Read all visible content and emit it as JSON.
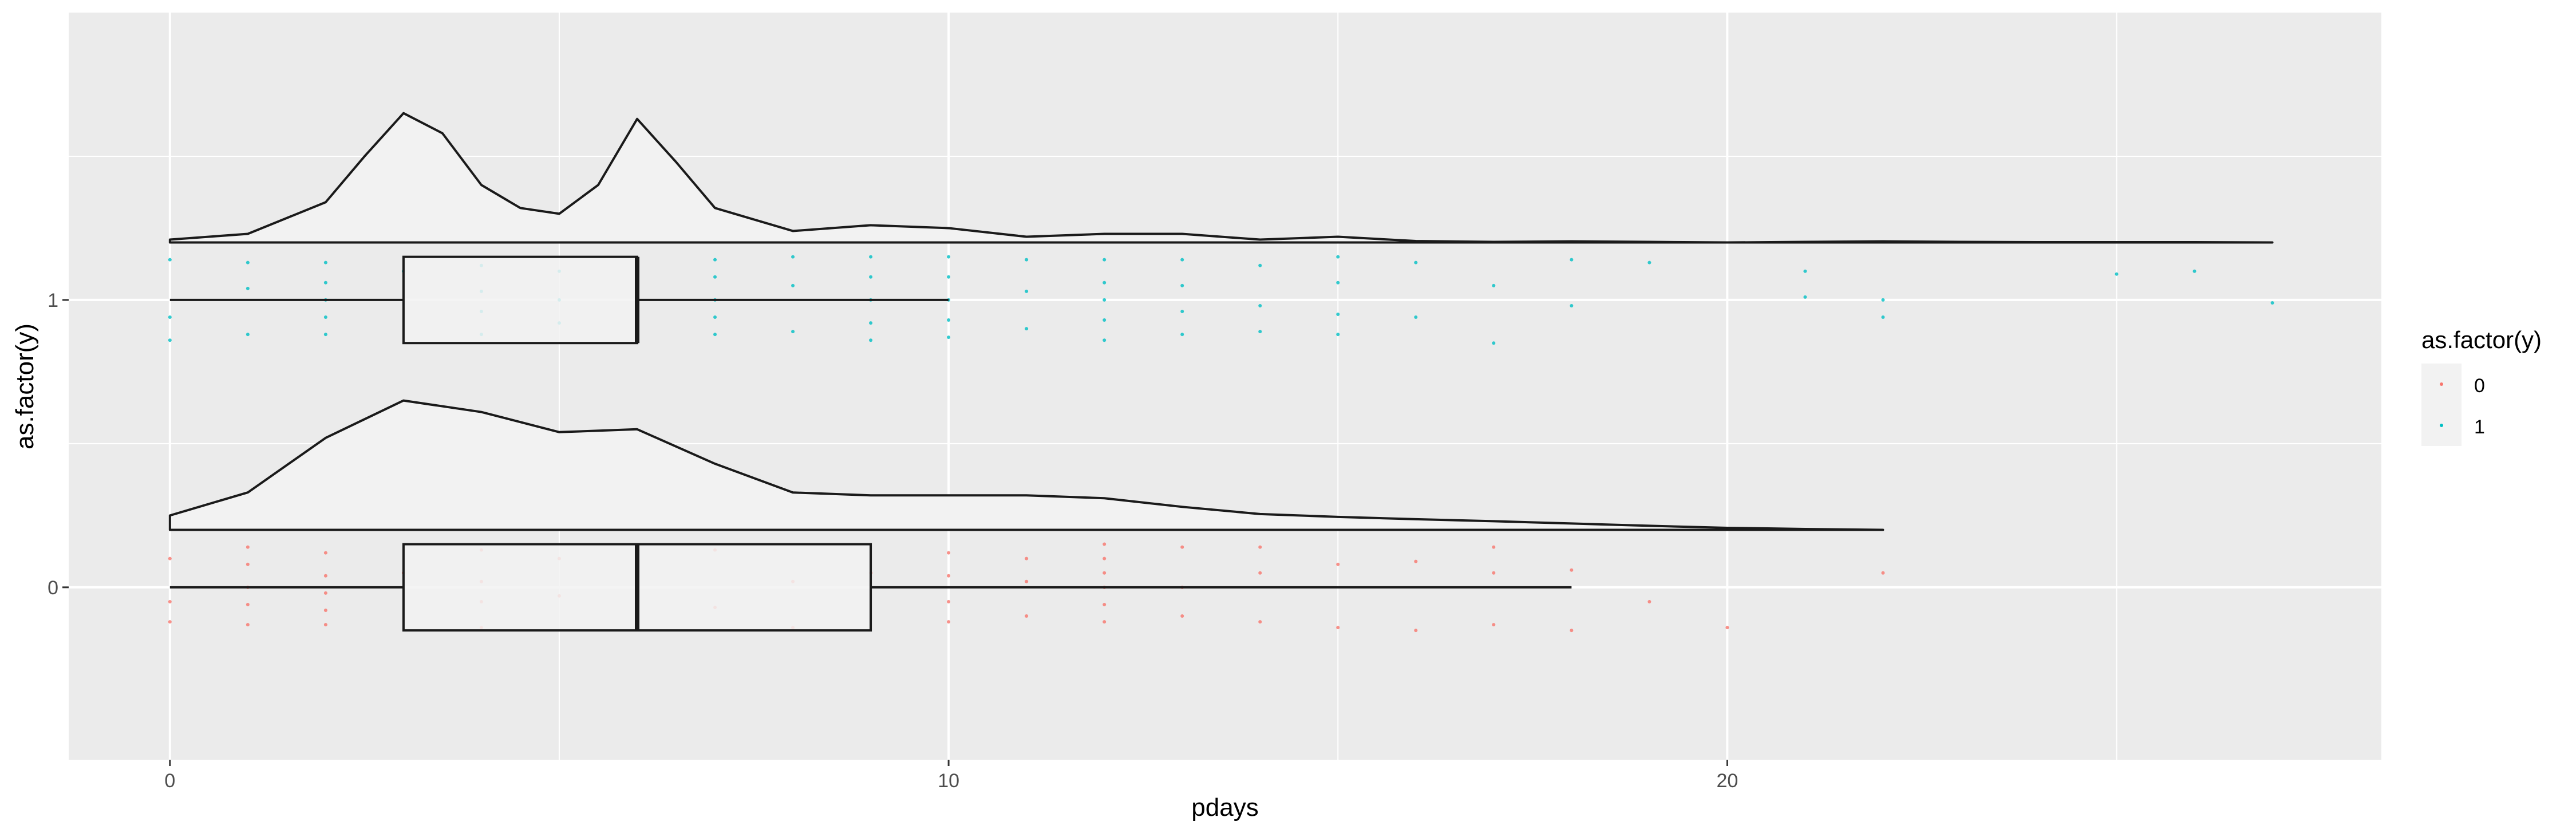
{
  "chart_data": {
    "type": "raincloud",
    "title": "",
    "xlabel": "pdays",
    "ylabel": "as.factor(y)",
    "xlim": [
      -1.3,
      28.4
    ],
    "ylim": [
      -0.6,
      2.0
    ],
    "grid": true,
    "x_ticks": [
      {
        "value": 0,
        "label": "0"
      },
      {
        "value": 10,
        "label": "10"
      },
      {
        "value": 20,
        "label": "20"
      }
    ],
    "x_minor_ticks": [
      5,
      15,
      25
    ],
    "y_ticks": [
      {
        "value": 0,
        "label": "0"
      },
      {
        "value": 1,
        "label": "1"
      }
    ],
    "y_minor_ticks": [
      0.5,
      1.5
    ],
    "legend": {
      "title": "as.factor(y)",
      "placement": "right",
      "entries": [
        {
          "label": "0",
          "color": "#F8766D"
        },
        {
          "label": "1",
          "color": "#00BFC4"
        }
      ]
    },
    "colors": {
      "panel": "#EBEBEB",
      "grid": "#FFFFFF",
      "shape_fill": "#F2F2F2",
      "outline": "#1A1A1A"
    },
    "groups": [
      {
        "name": "0",
        "y": 0,
        "color": "#F8766D",
        "box": {
          "whisker_low": 0,
          "q1": 3,
          "median": 6,
          "q3": 9,
          "whisker_high": 18,
          "half_height": 0.15
        },
        "violin": {
          "base": 0.2,
          "x": [
            0,
            1,
            2,
            3,
            4,
            5,
            6,
            7,
            8,
            9,
            10,
            11,
            12,
            13,
            14,
            15,
            16,
            17,
            18,
            19,
            20,
            21,
            22
          ],
          "h": [
            0.05,
            0.13,
            0.32,
            0.45,
            0.41,
            0.34,
            0.35,
            0.23,
            0.13,
            0.12,
            0.12,
            0.12,
            0.11,
            0.08,
            0.055,
            0.045,
            0.037,
            0.03,
            0.022,
            0.014,
            0.007,
            0.003,
            0.0
          ]
        },
        "points": {
          "x": [
            0,
            0,
            0,
            1,
            1,
            1,
            1,
            1,
            2,
            2,
            2,
            2,
            2,
            3,
            4,
            4,
            4,
            4,
            5,
            5,
            6,
            6,
            7,
            7,
            8,
            8,
            9,
            10,
            10,
            10,
            10,
            11,
            11,
            11,
            12,
            12,
            12,
            12,
            12,
            12,
            13,
            13,
            13,
            14,
            14,
            14,
            15,
            15,
            16,
            16,
            17,
            17,
            17,
            18,
            18,
            19,
            20,
            22
          ],
          "dy": [
            0.1,
            -0.05,
            -0.12,
            0.14,
            0.08,
            0.0,
            -0.06,
            -0.13,
            0.12,
            0.04,
            -0.02,
            -0.08,
            -0.13,
            0.05,
            0.13,
            0.02,
            -0.05,
            -0.14,
            0.1,
            -0.03,
            0.08,
            -0.11,
            0.13,
            -0.07,
            0.02,
            -0.14,
            0.05,
            0.12,
            0.04,
            -0.05,
            -0.12,
            0.1,
            0.02,
            -0.1,
            0.15,
            0.1,
            0.05,
            0.0,
            -0.06,
            -0.12,
            0.14,
            0.0,
            -0.1,
            0.14,
            0.05,
            -0.12,
            0.08,
            -0.14,
            0.09,
            -0.15,
            0.14,
            0.05,
            -0.13,
            0.06,
            -0.15,
            -0.05,
            -0.14,
            0.05
          ]
        }
      },
      {
        "name": "1",
        "y": 1,
        "color": "#00BFC4",
        "box": {
          "whisker_low": 0,
          "q1": 3,
          "median": 6,
          "q3": 6,
          "whisker_high": 10,
          "half_height": 0.15
        },
        "violin": {
          "base": 1.2,
          "x": [
            0,
            1,
            2,
            2.5,
            3,
            3.5,
            4,
            4.5,
            5,
            5.5,
            6,
            6.5,
            7,
            8,
            9,
            10,
            11,
            12,
            13,
            14,
            15,
            16,
            17,
            18,
            19,
            20,
            21,
            22,
            23,
            24,
            25,
            26,
            27
          ],
          "h": [
            0.01,
            0.03,
            0.14,
            0.3,
            0.45,
            0.38,
            0.2,
            0.12,
            0.1,
            0.2,
            0.43,
            0.28,
            0.12,
            0.04,
            0.06,
            0.05,
            0.02,
            0.03,
            0.03,
            0.01,
            0.02,
            0.005,
            0.002,
            0.004,
            0.002,
            0.0,
            0.002,
            0.004,
            0.002,
            0.001,
            0.001,
            0.001,
            0.0
          ]
        },
        "points": {
          "x": [
            0,
            0,
            0,
            1,
            1,
            1,
            2,
            2,
            2,
            2,
            2,
            3,
            4,
            4,
            4,
            4,
            5,
            5,
            5,
            6,
            6,
            7,
            7,
            7,
            7,
            7,
            8,
            8,
            8,
            9,
            9,
            9,
            9,
            9,
            10,
            10,
            10,
            10,
            10,
            11,
            11,
            11,
            12,
            12,
            12,
            12,
            12,
            13,
            13,
            13,
            13,
            14,
            14,
            14,
            15,
            15,
            15,
            15,
            16,
            16,
            17,
            17,
            18,
            18,
            19,
            21,
            21,
            22,
            22,
            25,
            26,
            27
          ],
          "dy": [
            0.14,
            -0.06,
            -0.14,
            0.13,
            0.04,
            -0.12,
            0.13,
            0.06,
            0.0,
            -0.06,
            -0.12,
            0.1,
            0.12,
            0.03,
            -0.04,
            -0.12,
            0.1,
            0.0,
            -0.08,
            0.12,
            -0.1,
            0.14,
            0.08,
            0.0,
            -0.06,
            -0.12,
            0.15,
            0.05,
            -0.11,
            0.15,
            0.08,
            0.0,
            -0.08,
            -0.14,
            0.15,
            0.08,
            0.0,
            -0.07,
            -0.13,
            0.14,
            0.03,
            -0.1,
            0.14,
            0.06,
            0.0,
            -0.07,
            -0.14,
            0.14,
            0.05,
            -0.04,
            -0.12,
            0.12,
            -0.02,
            -0.11,
            0.15,
            0.06,
            -0.05,
            -0.12,
            0.13,
            -0.06,
            0.05,
            -0.15,
            0.14,
            -0.02,
            0.13,
            0.1,
            0.01,
            0.0,
            -0.06,
            0.09,
            0.1,
            -0.01
          ]
        }
      }
    ]
  }
}
